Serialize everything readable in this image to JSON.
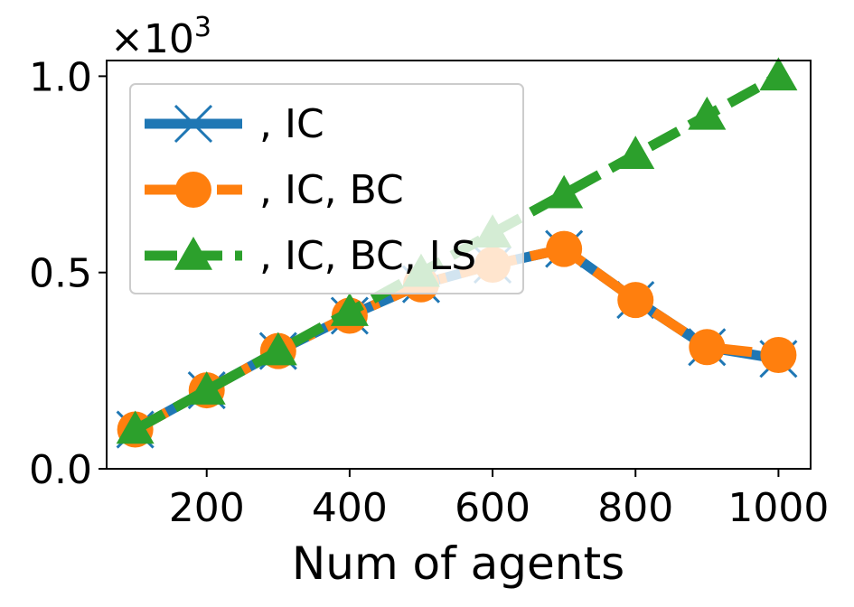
{
  "chart_data": {
    "type": "line",
    "title": "",
    "xlabel": "Num of agents",
    "ylabel": "",
    "y_multiplier_label": "×10",
    "y_multiplier_exp": "3",
    "xlim": [
      60,
      1045
    ],
    "ylim": [
      0,
      1.04
    ],
    "x_ticks": [
      200,
      400,
      600,
      800,
      1000
    ],
    "x_tick_labels": [
      "200",
      "400",
      "600",
      "800",
      "1000"
    ],
    "y_ticks": [
      0,
      0.5,
      1.0
    ],
    "y_tick_labels": [
      "0.0",
      "0.5",
      "1.0"
    ],
    "grid": false,
    "legend_position": "top-left",
    "x": [
      100,
      200,
      300,
      400,
      500,
      600,
      700,
      800,
      900,
      1000
    ],
    "series": [
      {
        "name": ", IC",
        "color": "#1f77b4",
        "marker": "x",
        "line_style": "solid",
        "values": [
          0.1,
          0.2,
          0.3,
          0.39,
          0.47,
          0.52,
          0.56,
          0.43,
          0.31,
          0.28
        ]
      },
      {
        "name": ", IC, BC",
        "color": "#ff7f0e",
        "marker": "circle",
        "line_style": "dashdot",
        "values": [
          0.1,
          0.2,
          0.3,
          0.39,
          0.47,
          0.52,
          0.56,
          0.43,
          0.31,
          0.29
        ]
      },
      {
        "name": ", IC, BC, LS",
        "color": "#2ca02c",
        "marker": "triangle",
        "line_style": "dashed",
        "values": [
          0.1,
          0.2,
          0.3,
          0.4,
          0.5,
          0.6,
          0.7,
          0.8,
          0.9,
          1.0
        ]
      }
    ]
  }
}
